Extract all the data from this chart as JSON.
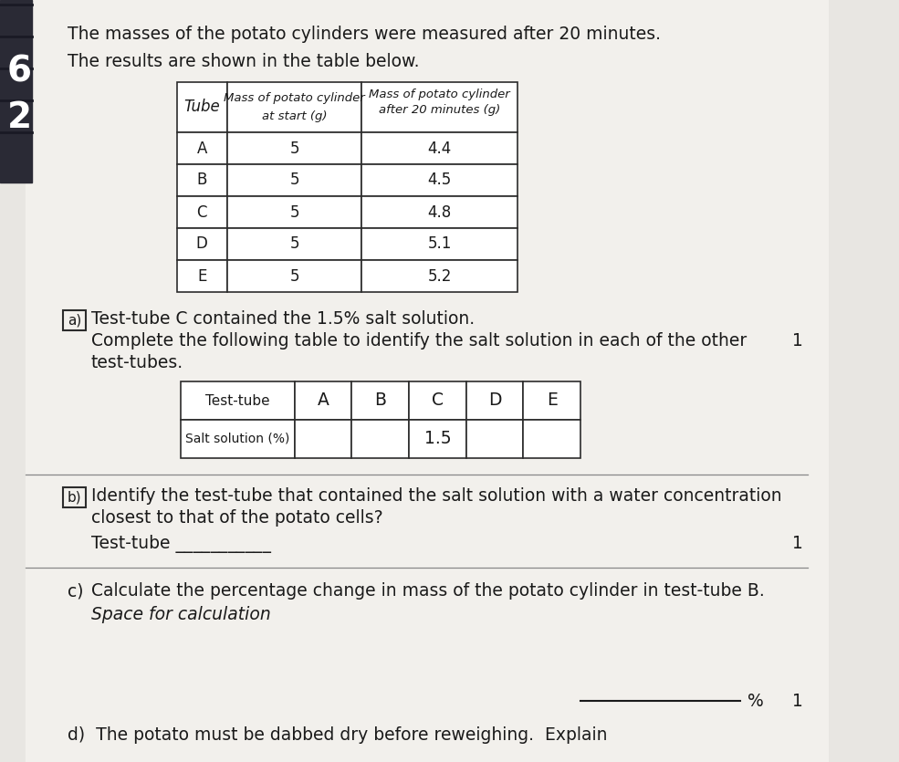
{
  "page_background": "#e8e6e2",
  "paper_background": "#f2f0ec",
  "intro_text_1": "The masses of the potato cylinders were measured after 20 minutes.",
  "intro_text_2": "The results are shown in the table below.",
  "table1_headers_line1": [
    "Tube",
    "Mass of potato cylinder",
    "Mass of potato cylinder"
  ],
  "table1_headers_line2": [
    "",
    "at start (g)",
    "after 20 minutes (g)"
  ],
  "table1_data": [
    [
      "A",
      "5",
      "4.4"
    ],
    [
      "B",
      "5",
      "4.5"
    ],
    [
      "C",
      "5",
      "4.8"
    ],
    [
      "D",
      "5",
      "5.1"
    ],
    [
      "E",
      "5",
      "5.2"
    ]
  ],
  "part_a_label": "a)",
  "part_a_text_1": "Test-tube C contained the 1.5% salt solution.",
  "part_a_text_2": "Complete the following table to identify the salt solution in each of the other",
  "part_a_text_3": "test-tubes.",
  "marks_1": "1",
  "table2_row1": [
    "Test-tube",
    "A",
    "B",
    "C",
    "D",
    "E"
  ],
  "table2_row2": [
    "Salt solution (%)",
    "",
    "",
    "1.5",
    "",
    ""
  ],
  "part_b_label": "b)",
  "part_b_text_1": "Identify the test-tube that contained the salt solution with a water concentration",
  "part_b_text_2": "closest to that of the potato cells?",
  "part_b_answer_label": "Test-tube ___________",
  "marks_2": "1",
  "part_c_label": "c)",
  "part_c_text": "Calculate the percentage change in mass of the potato cylinder in test-tube B.",
  "part_c_italic": "Space for calculation",
  "marks_3": "1",
  "part_d_text": "d)  The potato must be dabbed dry before reweighing.  Explain",
  "table_border_color": "#2c2c2c",
  "text_color": "#1a1a1a",
  "box_color": "#2c2c2c",
  "line_color": "#888888"
}
